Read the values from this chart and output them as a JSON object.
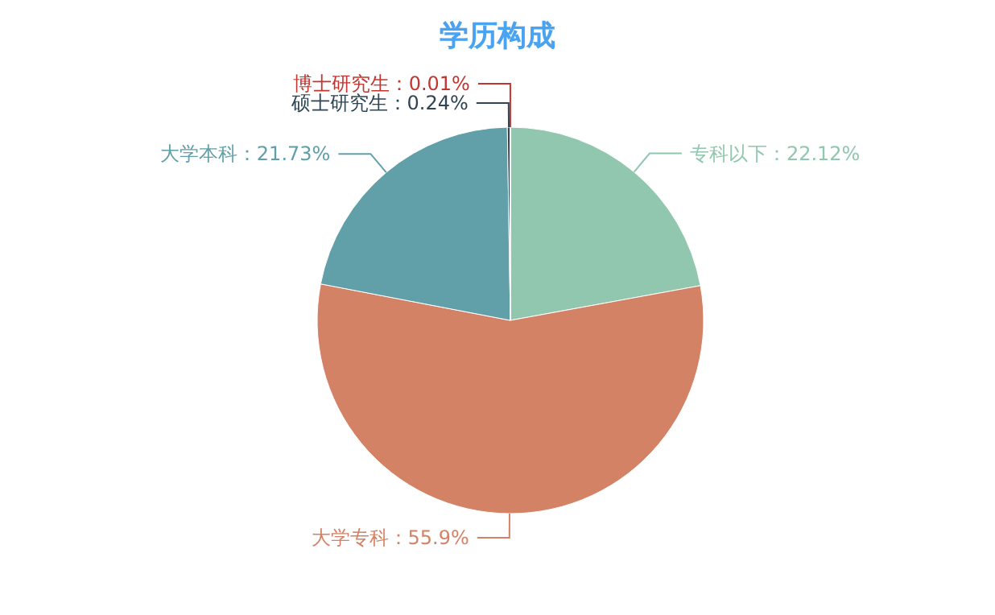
{
  "chart_data": {
    "type": "pie",
    "title": "学历构成",
    "categories": [
      "专科以下",
      "大学专科",
      "大学本科",
      "硕士研究生",
      "博士研究生"
    ],
    "values": [
      22.12,
      55.9,
      21.73,
      0.24,
      0.01
    ],
    "value_labels": [
      "：22.12%",
      "：55.9%",
      "：21.73%",
      "：0.24%",
      "：0.01%"
    ],
    "colors": [
      "#91c7ae",
      "#d48265",
      "#61a0a8",
      "#2f4554",
      "#c23531"
    ]
  }
}
